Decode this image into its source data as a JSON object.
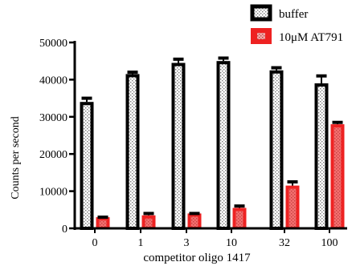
{
  "chart_data": {
    "type": "bar",
    "categories": [
      "0",
      "1",
      "3",
      "10",
      "32",
      "100"
    ],
    "series": [
      {
        "name": "buffer",
        "color": "#000000",
        "values": [
          34000,
          41500,
          44500,
          45000,
          42500,
          39000
        ],
        "error_upper": [
          35000,
          42000,
          45500,
          45800,
          43200,
          41000
        ]
      },
      {
        "name": "10μM AT791",
        "color": "#ee2222",
        "values": [
          3000,
          3500,
          4000,
          5500,
          11500,
          28000
        ],
        "error_upper": [
          3000,
          4000,
          4000,
          6000,
          12500,
          28500
        ]
      }
    ],
    "xlabel": "competitor oligo 1417",
    "ylabel": "Counts per second",
    "ylim": [
      0,
      50000
    ],
    "yticks": [
      0,
      10000,
      20000,
      30000,
      40000,
      50000
    ],
    "ytick_labels": [
      "0",
      "10000",
      "20000",
      "30000",
      "40000",
      "50000"
    ],
    "legend_position": "top-right",
    "grid": false
  }
}
